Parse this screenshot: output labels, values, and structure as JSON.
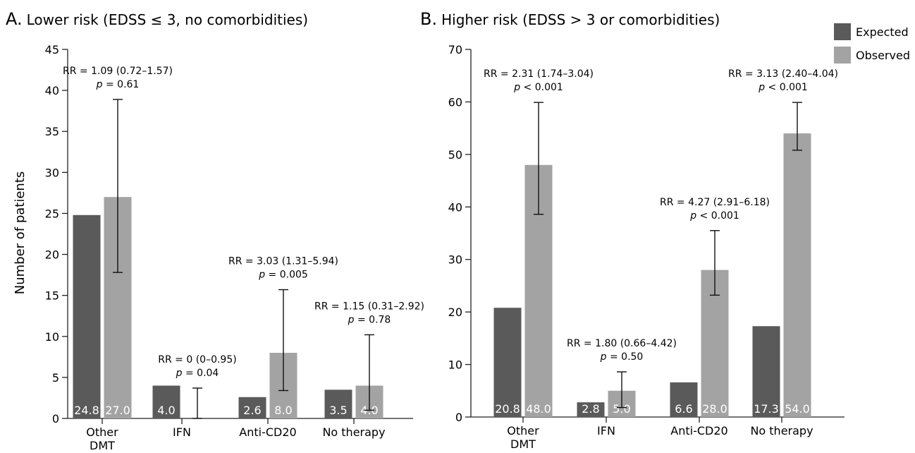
{
  "colors": {
    "expected": "#5a5a5a",
    "observed": "#a3a3a3",
    "axis": "#222222"
  },
  "legend": [
    "Expected",
    "Observed"
  ],
  "y_axis_label": "Number of patients",
  "chart_data": [
    {
      "type": "bar",
      "panel_letter": "A.",
      "title": "Lower risk (EDSS ≤ 3, no comorbidities)",
      "ylabel": "Number of patients",
      "ylim": [
        0,
        45
      ],
      "yticks": [
        0,
        5,
        10,
        15,
        20,
        25,
        30,
        35,
        40,
        45
      ],
      "categories": [
        [
          "Other",
          "DMT"
        ],
        [
          "IFN"
        ],
        [
          "Anti-CD20"
        ],
        [
          "No therapy"
        ]
      ],
      "series": [
        {
          "name": "Expected",
          "values": [
            24.8,
            4.0,
            2.6,
            3.5
          ],
          "labels": [
            "24.8",
            "4.0",
            "2.6",
            "3.5"
          ]
        },
        {
          "name": "Observed",
          "values": [
            27.0,
            0,
            8.0,
            4.0
          ],
          "labels": [
            "27.0",
            "0",
            "8.0",
            "4.0"
          ],
          "ci": [
            [
              17.8,
              38.9
            ],
            [
              0,
              3.7
            ],
            [
              3.4,
              15.7
            ],
            [
              1.0,
              10.2
            ]
          ]
        }
      ],
      "annotations": [
        {
          "rr": "RR = 1.09 (0.72–1.57)",
          "p": "= 0.61"
        },
        {
          "rr": "RR = 0 (0–0.95)",
          "p": "= 0.04"
        },
        {
          "rr": "RR = 3.03 (1.31–5.94)",
          "p": "= 0.005"
        },
        {
          "rr": "RR = 1.15 (0.31–2.92)",
          "p": "= 0.78"
        }
      ]
    },
    {
      "type": "bar",
      "panel_letter": "B.",
      "title": "Higher risk (EDSS > 3 or comorbidities)",
      "ylim": [
        0,
        70
      ],
      "yticks": [
        0,
        10,
        20,
        30,
        40,
        50,
        60,
        70
      ],
      "categories": [
        [
          "Other",
          "DMT"
        ],
        [
          "IFN"
        ],
        [
          "Anti-CD20"
        ],
        [
          "No therapy"
        ]
      ],
      "series": [
        {
          "name": "Expected",
          "values": [
            20.8,
            2.8,
            6.6,
            17.3
          ],
          "labels": [
            "20.8",
            "2.8",
            "6.6",
            "17.3"
          ]
        },
        {
          "name": "Observed",
          "values": [
            48.0,
            5.0,
            28.0,
            54.0
          ],
          "labels": [
            "48.0",
            "5.0",
            "28.0",
            "54.0"
          ],
          "ci": [
            [
              38.6,
              59.9
            ],
            [
              1.8,
              8.6
            ],
            [
              23.2,
              35.5
            ],
            [
              50.8,
              59.9
            ]
          ]
        }
      ],
      "annotations": [
        {
          "rr": "RR = 2.31 (1.74–3.04)",
          "p": "< 0.001"
        },
        {
          "rr": "RR = 1.80 (0.66–4.42)",
          "p": "= 0.50"
        },
        {
          "rr": "RR = 4.27 (2.91–6.18)",
          "p": "< 0.001"
        },
        {
          "rr": "RR = 3.13 (2.40–4.04)",
          "p": "< 0.001"
        }
      ]
    }
  ]
}
